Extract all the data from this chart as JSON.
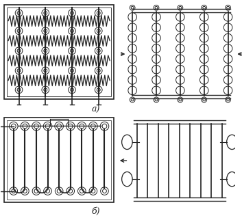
{
  "fig_width": 3.53,
  "fig_height": 3.19,
  "dpi": 100,
  "bg_color": "#ffffff",
  "line_color": "#222222",
  "label_a": "а)",
  "label_b": "б)"
}
